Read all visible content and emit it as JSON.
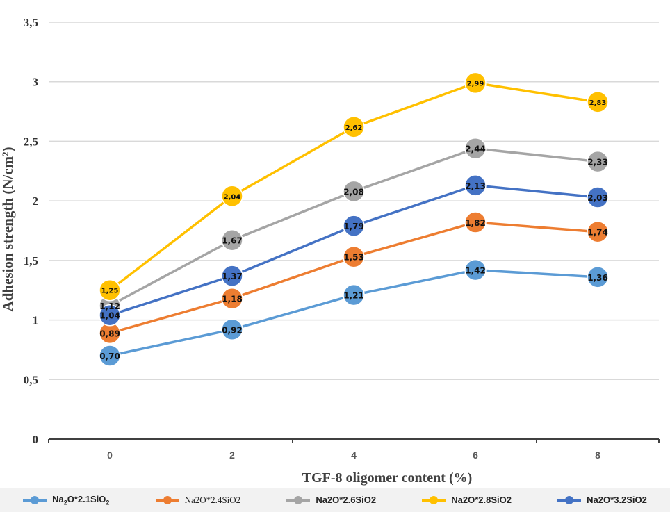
{
  "chart_data": {
    "type": "line",
    "title": "",
    "xlabel": "TGF-8 oligomer content (%)",
    "ylabel": "Adhesion strength (N/cm²)",
    "x": [
      0,
      2,
      4,
      6,
      8
    ],
    "x_tick_labels": [
      "0",
      "2",
      "4",
      "6",
      "8"
    ],
    "y_tick_labels": [
      "0",
      "0,5",
      "1",
      "1,5",
      "2",
      "2,5",
      "3",
      "3,5"
    ],
    "ylim": [
      0,
      3.5
    ],
    "grid": "horizontal",
    "legend_position": "bottom",
    "series": [
      {
        "name": "Na2O*2.1SiO2",
        "legend_parts": [
          "Na",
          "2",
          "O*2.1SiO",
          "2"
        ],
        "color": "#5b9bd5",
        "values": [
          0.7,
          0.92,
          1.21,
          1.42,
          1.36
        ],
        "labels": [
          "0,70",
          "0,92",
          "1,21",
          "1,42",
          "1,36"
        ]
      },
      {
        "name": "Na2O*2.4SiO2",
        "color": "#ed7d31",
        "values": [
          0.89,
          1.18,
          1.53,
          1.82,
          1.74
        ],
        "labels": [
          "0,89",
          "1,18",
          "1,53",
          "1,82",
          "1,74"
        ]
      },
      {
        "name": "Na2O*2.6SiO2",
        "color": "#a5a5a5",
        "values": [
          1.12,
          1.67,
          2.08,
          2.44,
          2.33
        ],
        "labels": [
          "1,12",
          "1,67",
          "2,08",
          "2,44",
          "2,33"
        ]
      },
      {
        "name": "Na2O*2.8SiO2",
        "color": "#ffc000",
        "values": [
          1.25,
          2.04,
          2.62,
          2.99,
          2.83
        ],
        "labels": [
          "1,25",
          "2,04",
          "2,62",
          "2,99",
          "2,83"
        ]
      },
      {
        "name": "Na2O*3.2SiO2",
        "color": "#4472c4",
        "values": [
          1.04,
          1.37,
          1.79,
          2.13,
          2.03
        ],
        "labels": [
          "1,04",
          "1,37",
          "1,79",
          "2,13",
          "2,03"
        ]
      }
    ]
  }
}
